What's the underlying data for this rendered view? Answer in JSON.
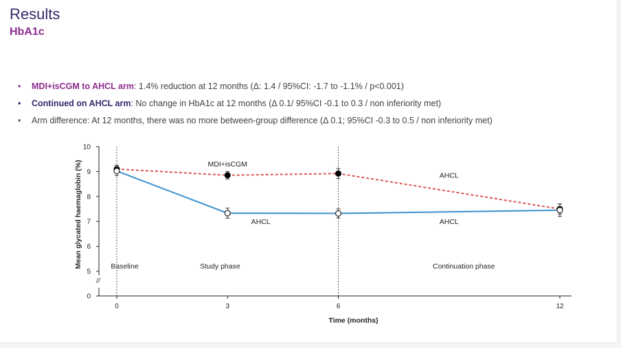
{
  "header": {
    "title": "Results",
    "subtitle": "HbA1c"
  },
  "bullets": [
    {
      "lead": "MDI+isCGM to AHCL arm",
      "text": ": 1.4% reduction at 12 months (Δ: 1.4 / 95%CI: -1.7 to -1.1% / p<0.001)",
      "color": "#8e2b8e"
    },
    {
      "lead": "Continued on AHCL arm",
      "text": ": No change in HbA1c at 12 months (Δ 0.1/ 95%CI -0.1 to 0.3 / non inferiority met)",
      "color": "#2f2a6b"
    },
    {
      "lead": "",
      "text": "Arm difference: At 12 months, there was no more between-group difference (Δ 0.1; 95%CI  -0.3 to 0.5 / non inferiority met)",
      "color": "#555555"
    }
  ],
  "chart_data": {
    "type": "line",
    "xlabel": "Time (months)",
    "ylabel": "Mean glycated haemaglobin (%)",
    "x": [
      0,
      3,
      6,
      12
    ],
    "x_ticks": [
      "0",
      "3",
      "6",
      "12"
    ],
    "y_ticks": [
      "0",
      "5",
      "6",
      "7",
      "8",
      "9",
      "10"
    ],
    "ylim": [
      5,
      10
    ],
    "axis_break": "//",
    "series": [
      {
        "values": [
          9.1,
          8.85,
          8.92,
          7.5
        ],
        "color": "#d9534f",
        "style": "dashed",
        "marker": "filled-circle",
        "err": [
          0.15,
          0.15,
          0.2,
          0.2
        ]
      },
      {
        "values": [
          9.02,
          7.33,
          7.32,
          7.45
        ],
        "color": "#3a8fcf",
        "style": "solid",
        "marker": "open-circle",
        "err": [
          0.18,
          0.2,
          0.18,
          0.25
        ]
      }
    ],
    "annotations": [
      {
        "text": "MDI+isCGM",
        "x": 3.0,
        "y": 9.2
      },
      {
        "text": "AHCL",
        "x": 9.0,
        "y": 8.75
      },
      {
        "text": "AHCL",
        "x": 3.9,
        "y": 6.9
      },
      {
        "text": "AHCL",
        "x": 9.0,
        "y": 6.9
      }
    ],
    "phases": [
      {
        "text": "Baseline",
        "x": 0.1
      },
      {
        "text": "Study phase",
        "x": 2.8
      },
      {
        "text": "Continuation phase",
        "x": 9.4
      }
    ],
    "phase_dividers_x": [
      0,
      6
    ],
    "grid": false
  }
}
